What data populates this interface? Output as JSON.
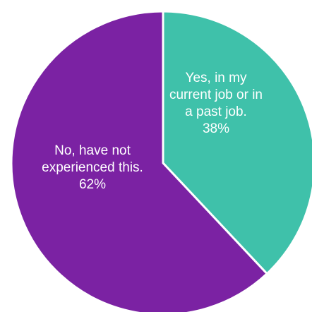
{
  "chart_data": {
    "type": "pie",
    "slices": [
      {
        "label_lines": [
          "Yes, in my",
          "current job or in",
          "a past job."
        ],
        "value": 38,
        "value_label": "38%",
        "color": "#3fc1aa"
      },
      {
        "label_lines": [
          "No, have not",
          "experienced this."
        ],
        "value": 62,
        "value_label": "62%",
        "color": "#7b22a3"
      }
    ],
    "start_angle_deg": 0,
    "direction": "clockwise",
    "separator_color": "#ffffff",
    "legend": "none"
  }
}
